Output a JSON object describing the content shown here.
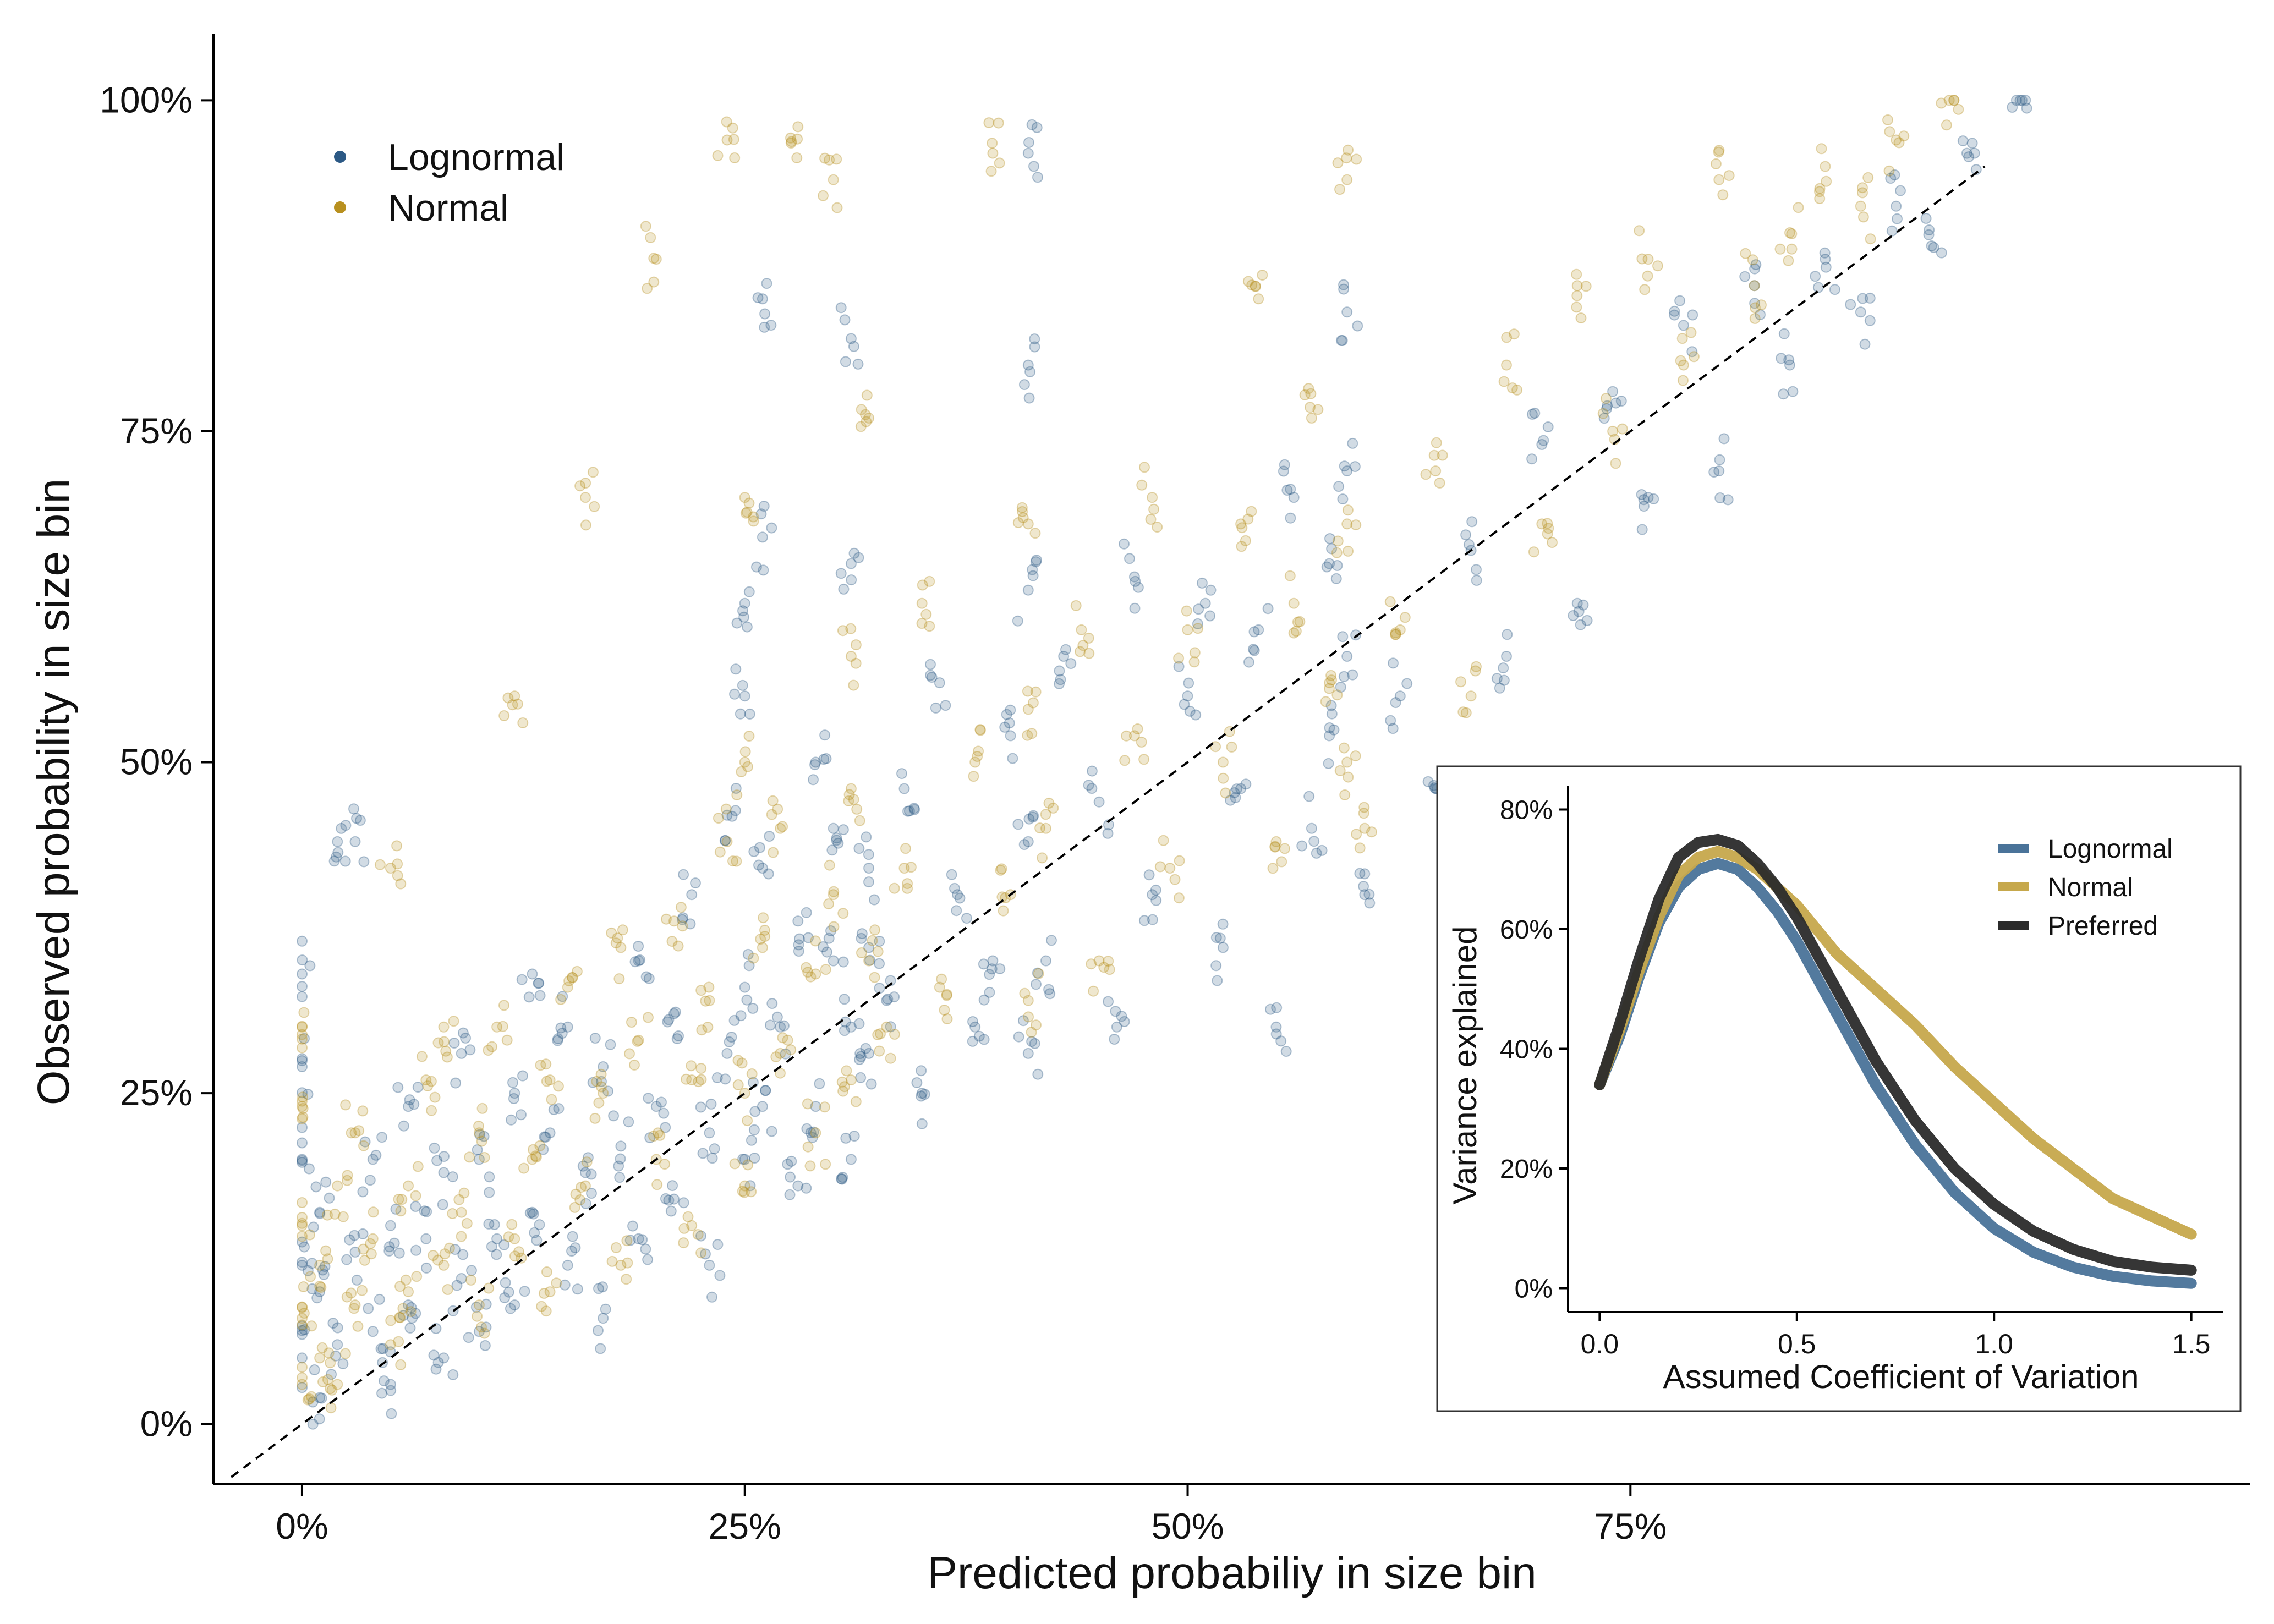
{
  "chart_data": [
    {
      "type": "scatter",
      "title": "",
      "xlabel": "Predicted probabiliy in size bin",
      "ylabel": "Observed probability in size bin",
      "xlim": [
        -0.05,
        1.1
      ],
      "ylim": [
        -0.045,
        1.05
      ],
      "x_ticks": [
        0,
        0.25,
        0.5,
        0.75
      ],
      "x_tick_labels": [
        "0%",
        "25%",
        "50%",
        "75%"
      ],
      "y_ticks": [
        0,
        0.25,
        0.5,
        0.75,
        1.0
      ],
      "y_tick_labels": [
        "0%",
        "25%",
        "50%",
        "75%",
        "100%"
      ],
      "grid": false,
      "legend_position": "top-left",
      "reference_line": {
        "type": "identity",
        "style": "dashed",
        "color": "#000000"
      },
      "series": [
        {
          "name": "Lognormal",
          "color": "#2C5985",
          "points": [
            [
              0.0,
              0.05
            ],
            [
              0.0,
              0.12
            ],
            [
              0.0,
              0.2
            ],
            [
              0.0,
              0.27
            ],
            [
              0.0,
              0.34
            ],
            [
              0.01,
              0.02
            ],
            [
              0.01,
              0.1
            ],
            [
              0.01,
              0.16
            ],
            [
              0.02,
              0.06
            ],
            [
              0.02,
              0.44
            ],
            [
              0.03,
              0.13
            ],
            [
              0.03,
              0.44
            ],
            [
              0.04,
              0.07
            ],
            [
              0.04,
              0.2
            ],
            [
              0.05,
              0.03
            ],
            [
              0.05,
              0.15
            ],
            [
              0.06,
              0.09
            ],
            [
              0.06,
              0.24
            ],
            [
              0.07,
              0.14
            ],
            [
              0.08,
              0.05
            ],
            [
              0.08,
              0.19
            ],
            [
              0.09,
              0.11
            ],
            [
              0.09,
              0.28
            ],
            [
              0.1,
              0.07
            ],
            [
              0.1,
              0.2
            ],
            [
              0.11,
              0.14
            ],
            [
              0.12,
              0.25
            ],
            [
              0.12,
              0.09
            ],
            [
              0.13,
              0.34
            ],
            [
              0.13,
              0.16
            ],
            [
              0.14,
              0.22
            ],
            [
              0.15,
              0.12
            ],
            [
              0.15,
              0.3
            ],
            [
              0.16,
              0.19
            ],
            [
              0.17,
              0.27
            ],
            [
              0.17,
              0.08
            ],
            [
              0.18,
              0.21
            ],
            [
              0.19,
              0.35
            ],
            [
              0.19,
              0.14
            ],
            [
              0.2,
              0.24
            ],
            [
              0.21,
              0.31
            ],
            [
              0.21,
              0.17
            ],
            [
              0.22,
              0.4
            ],
            [
              0.23,
              0.22
            ],
            [
              0.23,
              0.12
            ],
            [
              0.24,
              0.28
            ],
            [
              0.24,
              0.46
            ],
            [
              0.25,
              0.2
            ],
            [
              0.25,
              0.33
            ],
            [
              0.25,
              0.62
            ],
            [
              0.25,
              0.55
            ],
            [
              0.26,
              0.42
            ],
            [
              0.26,
              0.85
            ],
            [
              0.26,
              0.67
            ],
            [
              0.26,
              0.24
            ],
            [
              0.27,
              0.3
            ],
            [
              0.28,
              0.38
            ],
            [
              0.28,
              0.18
            ],
            [
              0.29,
              0.5
            ],
            [
              0.29,
              0.24
            ],
            [
              0.3,
              0.35
            ],
            [
              0.3,
              0.45
            ],
            [
              0.31,
              0.3
            ],
            [
              0.31,
              0.82
            ],
            [
              0.31,
              0.65
            ],
            [
              0.31,
              0.2
            ],
            [
              0.32,
              0.28
            ],
            [
              0.32,
              0.36
            ],
            [
              0.32,
              0.42
            ],
            [
              0.33,
              0.32
            ],
            [
              0.34,
              0.48
            ],
            [
              0.35,
              0.25
            ],
            [
              0.36,
              0.56
            ],
            [
              0.37,
              0.4
            ],
            [
              0.38,
              0.3
            ],
            [
              0.39,
              0.35
            ],
            [
              0.4,
              0.52
            ],
            [
              0.41,
              0.44
            ],
            [
              0.41,
              0.63
            ],
            [
              0.41,
              0.96
            ],
            [
              0.41,
              0.8
            ],
            [
              0.41,
              0.28
            ],
            [
              0.42,
              0.35
            ],
            [
              0.43,
              0.58
            ],
            [
              0.45,
              0.47
            ],
            [
              0.46,
              0.3
            ],
            [
              0.47,
              0.64
            ],
            [
              0.48,
              0.4
            ],
            [
              0.5,
              0.55
            ],
            [
              0.51,
              0.62
            ],
            [
              0.52,
              0.36
            ],
            [
              0.53,
              0.48
            ],
            [
              0.54,
              0.6
            ],
            [
              0.55,
              0.3
            ],
            [
              0.56,
              0.7
            ],
            [
              0.57,
              0.45
            ],
            [
              0.58,
              0.65
            ],
            [
              0.58,
              0.52
            ],
            [
              0.59,
              0.84
            ],
            [
              0.59,
              0.72
            ],
            [
              0.59,
              0.58
            ],
            [
              0.6,
              0.4
            ],
            [
              0.62,
              0.55
            ],
            [
              0.64,
              0.48
            ],
            [
              0.66,
              0.66
            ],
            [
              0.68,
              0.58
            ],
            [
              0.7,
              0.74
            ],
            [
              0.72,
              0.62
            ],
            [
              0.74,
              0.78
            ],
            [
              0.76,
              0.7
            ],
            [
              0.78,
              0.83
            ],
            [
              0.8,
              0.72
            ],
            [
              0.82,
              0.86
            ],
            [
              0.84,
              0.8
            ],
            [
              0.86,
              0.88
            ],
            [
              0.88,
              0.84
            ],
            [
              0.9,
              0.92
            ],
            [
              0.92,
              0.89
            ],
            [
              0.94,
              0.96
            ],
            [
              0.97,
              1.0
            ]
          ]
        },
        {
          "name": "Normal",
          "color": "#B8901F",
          "points": [
            [
              0.0,
              0.03
            ],
            [
              0.0,
              0.08
            ],
            [
              0.0,
              0.15
            ],
            [
              0.0,
              0.24
            ],
            [
              0.0,
              0.3
            ],
            [
              0.01,
              0.05
            ],
            [
              0.01,
              0.12
            ],
            [
              0.02,
              0.18
            ],
            [
              0.02,
              0.03
            ],
            [
              0.03,
              0.09
            ],
            [
              0.03,
              0.22
            ],
            [
              0.04,
              0.14
            ],
            [
              0.05,
              0.06
            ],
            [
              0.05,
              0.42
            ],
            [
              0.06,
              0.18
            ],
            [
              0.06,
              0.1
            ],
            [
              0.07,
              0.26
            ],
            [
              0.08,
              0.12
            ],
            [
              0.08,
              0.3
            ],
            [
              0.09,
              0.16
            ],
            [
              0.1,
              0.09
            ],
            [
              0.1,
              0.22
            ],
            [
              0.11,
              0.3
            ],
            [
              0.12,
              0.14
            ],
            [
              0.12,
              0.55
            ],
            [
              0.13,
              0.2
            ],
            [
              0.14,
              0.26
            ],
            [
              0.14,
              0.1
            ],
            [
              0.15,
              0.33
            ],
            [
              0.16,
              0.18
            ],
            [
              0.16,
              0.7
            ],
            [
              0.17,
              0.25
            ],
            [
              0.18,
              0.36
            ],
            [
              0.18,
              0.12
            ],
            [
              0.19,
              0.29
            ],
            [
              0.2,
              0.2
            ],
            [
              0.2,
              0.88
            ],
            [
              0.21,
              0.38
            ],
            [
              0.22,
              0.26
            ],
            [
              0.22,
              0.15
            ],
            [
              0.23,
              0.32
            ],
            [
              0.24,
              0.44
            ],
            [
              0.24,
              0.97
            ],
            [
              0.25,
              0.25
            ],
            [
              0.25,
              0.5
            ],
            [
              0.25,
              0.7
            ],
            [
              0.25,
              0.18
            ],
            [
              0.26,
              0.36
            ],
            [
              0.27,
              0.28
            ],
            [
              0.27,
              0.45
            ],
            [
              0.28,
              0.98
            ],
            [
              0.29,
              0.34
            ],
            [
              0.29,
              0.22
            ],
            [
              0.3,
              0.4
            ],
            [
              0.3,
              0.94
            ],
            [
              0.31,
              0.48
            ],
            [
              0.31,
              0.26
            ],
            [
              0.31,
              0.58
            ],
            [
              0.32,
              0.35
            ],
            [
              0.32,
              0.76
            ],
            [
              0.33,
              0.3
            ],
            [
              0.34,
              0.42
            ],
            [
              0.35,
              0.62
            ],
            [
              0.36,
              0.33
            ],
            [
              0.38,
              0.5
            ],
            [
              0.39,
              0.96
            ],
            [
              0.4,
              0.4
            ],
            [
              0.41,
              0.54
            ],
            [
              0.41,
              0.68
            ],
            [
              0.41,
              0.32
            ],
            [
              0.42,
              0.45
            ],
            [
              0.44,
              0.6
            ],
            [
              0.45,
              0.35
            ],
            [
              0.47,
              0.52
            ],
            [
              0.48,
              0.7
            ],
            [
              0.49,
              0.42
            ],
            [
              0.5,
              0.6
            ],
            [
              0.52,
              0.5
            ],
            [
              0.53,
              0.68
            ],
            [
              0.54,
              0.85
            ],
            [
              0.55,
              0.44
            ],
            [
              0.56,
              0.62
            ],
            [
              0.57,
              0.76
            ],
            [
              0.58,
              0.56
            ],
            [
              0.59,
              0.94
            ],
            [
              0.59,
              0.68
            ],
            [
              0.59,
              0.5
            ],
            [
              0.6,
              0.45
            ],
            [
              0.62,
              0.6
            ],
            [
              0.64,
              0.72
            ],
            [
              0.66,
              0.55
            ],
            [
              0.68,
              0.8
            ],
            [
              0.7,
              0.68
            ],
            [
              0.72,
              0.86
            ],
            [
              0.74,
              0.75
            ],
            [
              0.76,
              0.88
            ],
            [
              0.78,
              0.8
            ],
            [
              0.8,
              0.94
            ],
            [
              0.82,
              0.86
            ],
            [
              0.84,
              0.9
            ],
            [
              0.86,
              0.95
            ],
            [
              0.88,
              0.92
            ],
            [
              0.9,
              0.97
            ],
            [
              0.93,
              1.0
            ]
          ]
        }
      ]
    },
    {
      "type": "line",
      "title": "",
      "xlabel": "Assumed Coefficient of Variation",
      "ylabel": "Variance explained",
      "xlim": [
        -0.08,
        1.58
      ],
      "ylim": [
        -0.04,
        0.84
      ],
      "x_ticks": [
        0,
        0.5,
        1.0,
        1.5
      ],
      "x_tick_labels": [
        "0.0",
        "0.5",
        "1.0",
        "1.5"
      ],
      "y_ticks": [
        0,
        0.2,
        0.4,
        0.6,
        0.8
      ],
      "y_tick_labels": [
        "0%",
        "20%",
        "40%",
        "60%",
        "80%"
      ],
      "grid": false,
      "legend_position": "top-right",
      "x": [
        0.0,
        0.05,
        0.1,
        0.15,
        0.2,
        0.25,
        0.3,
        0.35,
        0.4,
        0.45,
        0.5,
        0.55,
        0.6,
        0.7,
        0.8,
        0.9,
        1.0,
        1.1,
        1.2,
        1.3,
        1.4,
        1.5
      ],
      "series": [
        {
          "name": "Lognormal",
          "color": "#4A7399",
          "values": [
            0.34,
            0.42,
            0.52,
            0.61,
            0.67,
            0.7,
            0.71,
            0.7,
            0.67,
            0.63,
            0.58,
            0.52,
            0.46,
            0.34,
            0.24,
            0.16,
            0.1,
            0.06,
            0.035,
            0.02,
            0.012,
            0.008
          ]
        },
        {
          "name": "Normal",
          "color": "#C6A84C",
          "values": [
            0.34,
            0.43,
            0.53,
            0.62,
            0.69,
            0.72,
            0.73,
            0.72,
            0.7,
            0.67,
            0.64,
            0.6,
            0.56,
            0.5,
            0.44,
            0.37,
            0.31,
            0.25,
            0.2,
            0.15,
            0.12,
            0.09
          ]
        },
        {
          "name": "Preferred",
          "color": "#2B2B2B",
          "values": [
            0.34,
            0.44,
            0.55,
            0.65,
            0.72,
            0.745,
            0.75,
            0.74,
            0.71,
            0.67,
            0.62,
            0.56,
            0.5,
            0.38,
            0.28,
            0.2,
            0.14,
            0.095,
            0.065,
            0.045,
            0.035,
            0.03
          ]
        }
      ]
    }
  ]
}
